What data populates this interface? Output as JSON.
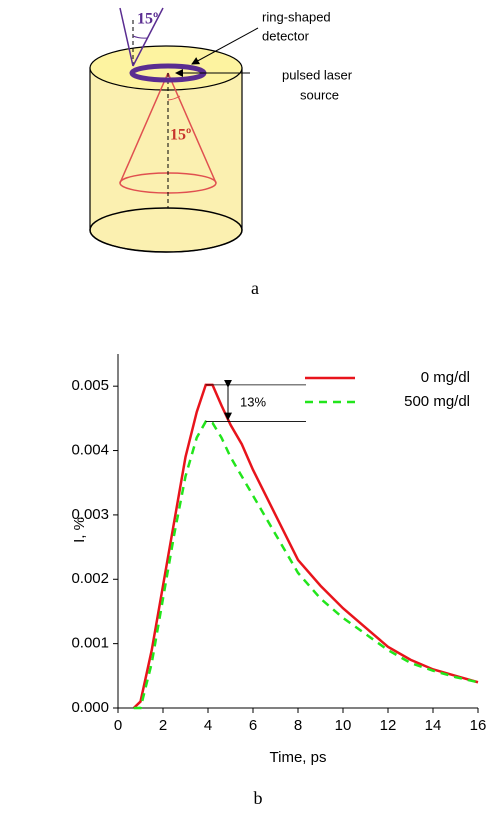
{
  "diagram": {
    "angle_labels": [
      "15º",
      "15º"
    ],
    "detector_label": [
      "ring-shaped",
      "detector"
    ],
    "source_label": [
      "pulsed laser",
      "source"
    ]
  },
  "captions": [
    "a",
    "b"
  ],
  "chart_data": {
    "type": "line",
    "x_label": "Time, ps",
    "y_label": "I, %",
    "x": [
      0.7,
      1,
      1.5,
      2,
      2.5,
      3,
      3.5,
      3.9,
      4.2,
      4.6,
      5,
      5.5,
      6,
      7,
      8,
      9,
      10,
      11,
      12,
      13,
      14,
      15,
      16
    ],
    "series": [
      {
        "name": "0 mg/dl",
        "color": "#e8141c",
        "linestyle": "solid",
        "values": [
          0,
          0.0001,
          0.0009,
          0.0019,
          0.0029,
          0.0039,
          0.0046,
          0.00502,
          0.00502,
          0.0047,
          0.0044,
          0.0041,
          0.0037,
          0.003,
          0.0023,
          0.0019,
          0.00155,
          0.00125,
          0.00095,
          0.00075,
          0.0006,
          0.0005,
          0.0004
        ]
      },
      {
        "name": "500 mg/dl",
        "color": "#22e51c",
        "linestyle": "dashed",
        "values": [
          0,
          0,
          0.0007,
          0.0017,
          0.0027,
          0.0036,
          0.0042,
          0.00445,
          0.00443,
          0.0042,
          0.0039,
          0.0036,
          0.0033,
          0.0027,
          0.0021,
          0.0017,
          0.0014,
          0.00115,
          0.0009,
          0.0007,
          0.00058,
          0.00048,
          0.0004
        ]
      }
    ],
    "annotation": "13%",
    "xlim": [
      0,
      16
    ],
    "xticks": [
      0,
      2,
      4,
      6,
      8,
      10,
      12,
      14,
      16
    ],
    "ylim": [
      0,
      0.0055
    ],
    "yticks": [
      {
        "value": 0,
        "label": "0.000"
      },
      0.001,
      0.002,
      0.003,
      0.004,
      0.005
    ],
    "legend": "upper right"
  }
}
